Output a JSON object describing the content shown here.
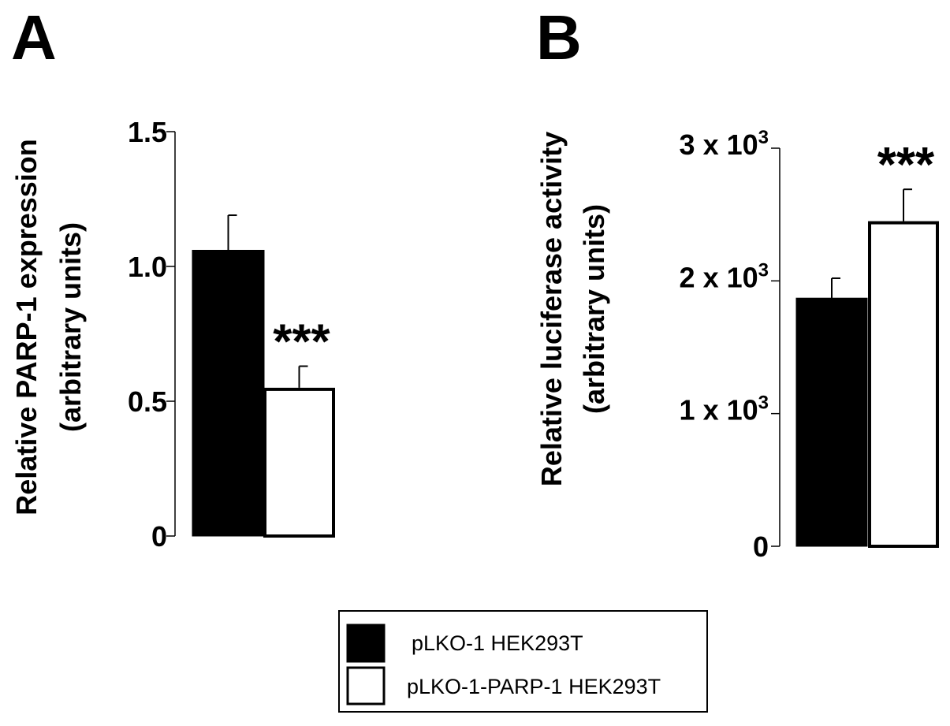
{
  "panels": {
    "a": {
      "letter": "A"
    },
    "b": {
      "letter": "B"
    }
  },
  "chart_data": [
    {
      "type": "bar",
      "panel": "A",
      "ylabel": "Relative PARP-1 expression",
      "ylabel_line2": "(arbitrary units)",
      "ylim": [
        0,
        1.5
      ],
      "yticks": [
        {
          "value": 0,
          "label": "0"
        },
        {
          "value": 0.5,
          "label": "0.5"
        },
        {
          "value": 1.0,
          "label": "1.0"
        },
        {
          "value": 1.5,
          "label": "1.5"
        }
      ],
      "categories": [
        "pLKO-1 HEK293T",
        "pLKO-1-PARP-1 HEK293T"
      ],
      "values": [
        1.06,
        0.55
      ],
      "errors": [
        0.13,
        0.08
      ],
      "colors": [
        "#000000",
        "#ffffff"
      ],
      "annotations": [
        {
          "category_index": 1,
          "text": "***"
        }
      ]
    },
    {
      "type": "bar",
      "panel": "B",
      "ylabel": "Relative luciferase activity",
      "ylabel_line2": "(arbitrary units)",
      "ylim": [
        0,
        3000
      ],
      "yticks": [
        {
          "value": 0,
          "label": "0",
          "base": "",
          "exp": ""
        },
        {
          "value": 1000,
          "label": "1 x 10^3",
          "base": "1 x 10",
          "exp": "3"
        },
        {
          "value": 2000,
          "label": "2 x 10^3",
          "base": "2 x 10",
          "exp": "3"
        },
        {
          "value": 3000,
          "label": "3 x 10^3",
          "base": "3 x 10",
          "exp": "3"
        }
      ],
      "categories": [
        "pLKO-1 HEK293T",
        "pLKO-1-PARP-1 HEK293T"
      ],
      "values": [
        1870,
        2450
      ],
      "errors": [
        150,
        240
      ],
      "colors": [
        "#000000",
        "#ffffff"
      ],
      "annotations": [
        {
          "category_index": 1,
          "text": "***"
        }
      ]
    }
  ],
  "legend": {
    "entries": [
      {
        "label": "pLKO-1 HEK293T",
        "color": "#000000"
      },
      {
        "label": "pLKO-1-PARP-1 HEK293T",
        "color": "#ffffff"
      }
    ]
  }
}
